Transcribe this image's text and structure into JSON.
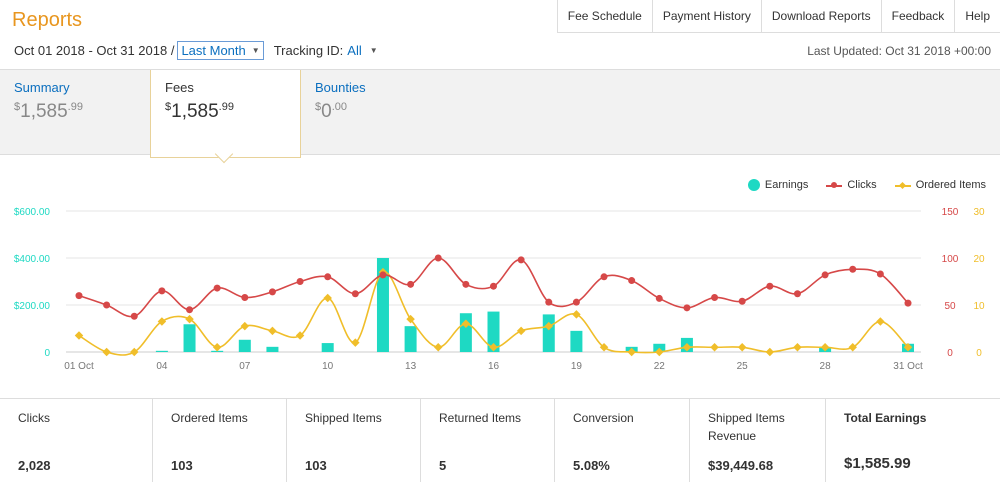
{
  "header": {
    "title": "Reports",
    "nav": [
      "Fee Schedule",
      "Payment History",
      "Download Reports",
      "Feedback",
      "Help"
    ]
  },
  "filters": {
    "date_range": "Oct 01 2018 - Oct 31 2018 /",
    "range_select": "Last Month",
    "tracking_label": "Tracking ID:",
    "tracking_value": "All",
    "last_updated": "Last Updated: Oct 31 2018 +00:00"
  },
  "tabs": [
    {
      "label": "Summary",
      "currency": "$",
      "whole": "1,585",
      "cents": ".99"
    },
    {
      "label": "Fees",
      "currency": "$",
      "whole": "1,585",
      "cents": ".99"
    },
    {
      "label": "Bounties",
      "currency": "$",
      "whole": "0",
      "cents": ".00"
    }
  ],
  "active_tab": 1,
  "legend": {
    "earnings": "Earnings",
    "clicks": "Clicks",
    "ordered": "Ordered Items"
  },
  "colors": {
    "earnings": "#1ed9c3",
    "clicks": "#d64848",
    "ordered": "#f0be2a",
    "accent": "#e8961f",
    "link": "#0b6fbf"
  },
  "chart_data": {
    "type": "bar+line",
    "x": [
      1,
      2,
      3,
      4,
      5,
      6,
      7,
      8,
      9,
      10,
      11,
      12,
      13,
      14,
      15,
      16,
      17,
      18,
      19,
      20,
      21,
      22,
      23,
      24,
      25,
      26,
      27,
      28,
      29,
      30,
      31
    ],
    "x_tick_labels": {
      "1": "01 Oct",
      "4": "04",
      "7": "07",
      "10": "10",
      "13": "13",
      "16": "16",
      "19": "19",
      "22": "22",
      "25": "25",
      "28": "28",
      "31": "31 Oct"
    },
    "y_left": {
      "ticks": [
        "0",
        "$200.00",
        "$400.00",
        "$600.00"
      ],
      "range": [
        0,
        600
      ],
      "color": "#1ed9c3"
    },
    "y_right_clicks": {
      "ticks": [
        "0",
        "50",
        "100",
        "150"
      ],
      "range": [
        0,
        150
      ],
      "color": "#d64848"
    },
    "y_right_ordered": {
      "ticks": [
        "0",
        "10",
        "20",
        "30"
      ],
      "range": [
        0,
        30
      ],
      "color": "#f0be2a"
    },
    "series": [
      {
        "name": "Earnings",
        "type": "bar",
        "axis": "left",
        "values": [
          0,
          0,
          0,
          5,
          118,
          5,
          52,
          22,
          0,
          38,
          0,
          400,
          110,
          0,
          165,
          172,
          0,
          160,
          90,
          0,
          22,
          35,
          60,
          0,
          0,
          0,
          0,
          20,
          0,
          0,
          35
        ]
      },
      {
        "name": "Clicks",
        "type": "line",
        "axis": "right_clicks",
        "values": [
          60,
          50,
          38,
          65,
          45,
          68,
          58,
          64,
          75,
          80,
          62,
          82,
          72,
          100,
          72,
          70,
          98,
          53,
          53,
          80,
          76,
          57,
          47,
          58,
          54,
          70,
          62,
          82,
          88,
          83,
          52
        ]
      },
      {
        "name": "Ordered Items",
        "type": "line",
        "axis": "right_ordered",
        "values": [
          3.5,
          0,
          0,
          6.5,
          7,
          1,
          5.5,
          4.5,
          3.5,
          11.5,
          2,
          17,
          7,
          1,
          6,
          1,
          4.5,
          5.5,
          8,
          1,
          0,
          0,
          1,
          1,
          1,
          0,
          1,
          1,
          1,
          6.5,
          1
        ]
      }
    ]
  },
  "stats": [
    {
      "label": "Clicks",
      "value": "2,028"
    },
    {
      "label": "Ordered Items",
      "value": "103"
    },
    {
      "label": "Shipped Items",
      "value": "103"
    },
    {
      "label": "Returned Items",
      "value": "5"
    },
    {
      "label": "Conversion",
      "value": "5.08%"
    },
    {
      "label": "Shipped Items Revenue",
      "value": "$39,449.68"
    },
    {
      "label": "Total Earnings",
      "value": "$1,585.99"
    }
  ]
}
